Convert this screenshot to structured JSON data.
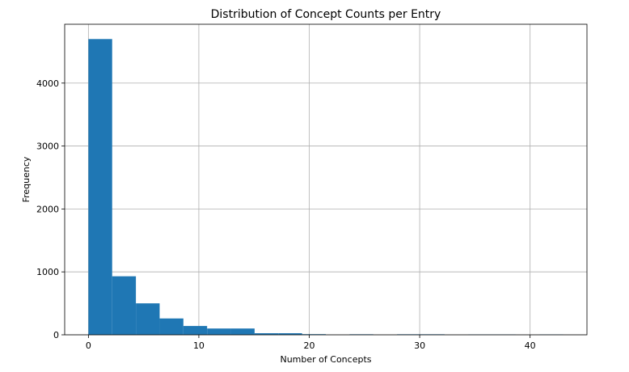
{
  "chart_data": {
    "type": "bar",
    "title": "Distribution of Concept Counts per Entry",
    "xlabel": "Number of Concepts",
    "ylabel": "Frequency",
    "xlim": [
      -2.15,
      45.15
    ],
    "ylim": [
      0,
      4935
    ],
    "xticks": [
      0,
      10,
      20,
      30,
      40
    ],
    "yticks": [
      0,
      1000,
      2000,
      3000,
      4000
    ],
    "grid": true,
    "color": "#1f77b4",
    "bin_edges": [
      0,
      2.15,
      4.3,
      6.45,
      8.6,
      10.75,
      12.9,
      15.05,
      17.2,
      19.35,
      21.5,
      23.65,
      25.8,
      27.95,
      30.1,
      32.25,
      34.4,
      36.55,
      38.7,
      40.85,
      43.0
    ],
    "values": [
      4700,
      930,
      500,
      260,
      140,
      100,
      100,
      25,
      25,
      10,
      0,
      8,
      0,
      8,
      8,
      0,
      5,
      5,
      0,
      5
    ]
  }
}
